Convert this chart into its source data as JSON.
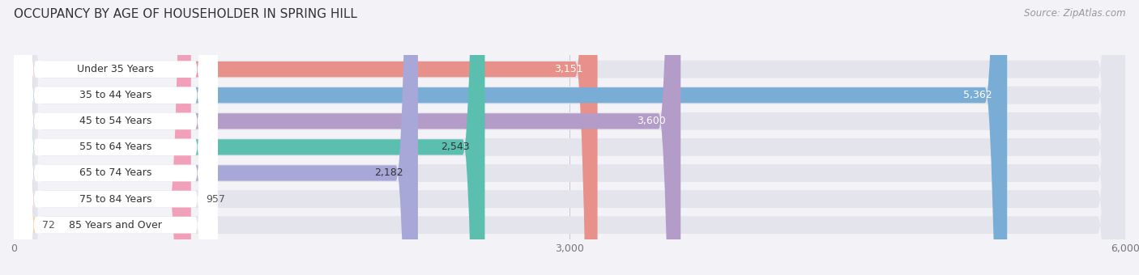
{
  "title": "OCCUPANCY BY AGE OF HOUSEHOLDER IN SPRING HILL",
  "source": "Source: ZipAtlas.com",
  "categories": [
    "Under 35 Years",
    "35 to 44 Years",
    "45 to 54 Years",
    "55 to 64 Years",
    "65 to 74 Years",
    "75 to 84 Years",
    "85 Years and Over"
  ],
  "values": [
    3151,
    5362,
    3600,
    2543,
    2182,
    957,
    72
  ],
  "bar_colors": [
    "#E8908A",
    "#7AADD6",
    "#B49CC8",
    "#5BBFB0",
    "#A8A8D8",
    "#F0A0B8",
    "#F5D5A8"
  ],
  "background_color": "#f2f2f7",
  "track_color": "#e4e4ed",
  "label_bg_color": "#ffffff",
  "xlim_max": 6000,
  "xticks": [
    0,
    3000,
    6000
  ],
  "title_fontsize": 11,
  "source_fontsize": 8.5,
  "cat_fontsize": 9,
  "val_fontsize": 9,
  "tick_fontsize": 9
}
